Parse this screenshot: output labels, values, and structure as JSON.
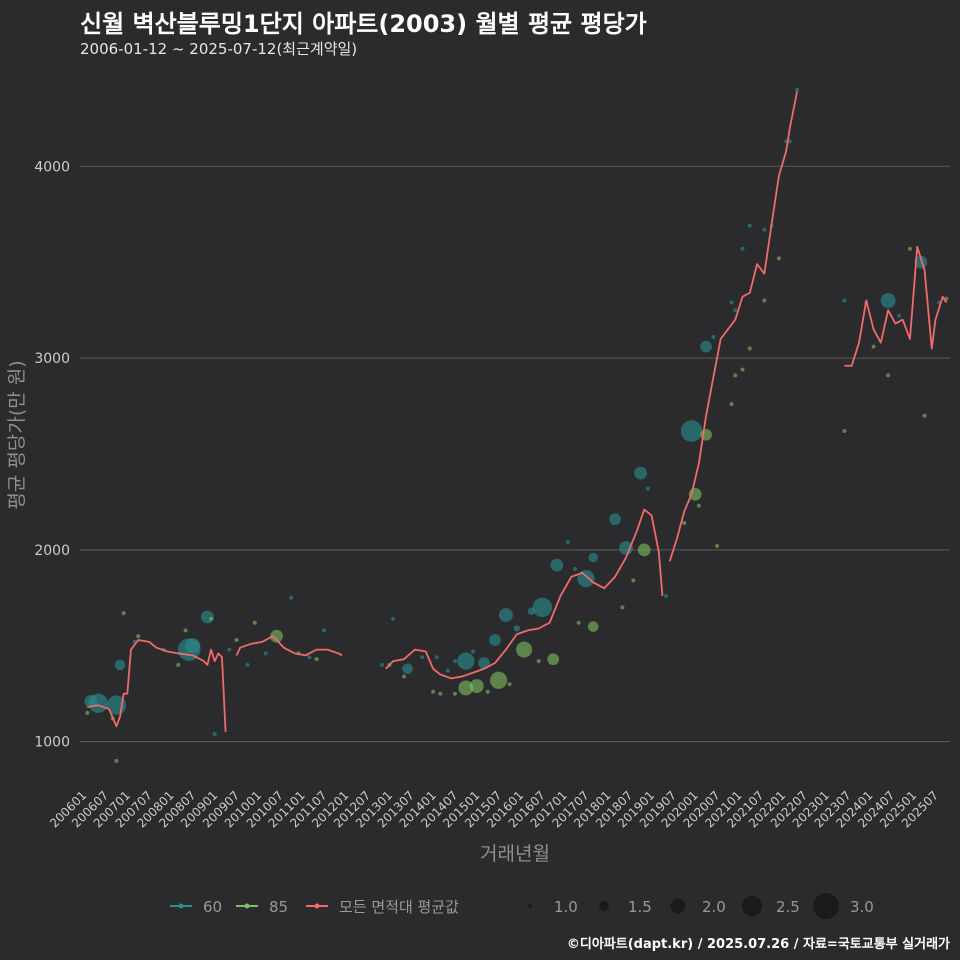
{
  "header": {
    "title": "신월 벽산블루밍1단지 아파트(2003) 월별 평균 평당가",
    "subtitle": "2006-01-12 ~ 2025-07-12(최근계약일)"
  },
  "footer": {
    "credit": "©디아파트(dapt.kr) / 2025.07.26 / 자료=국토교통부 실거래가"
  },
  "colors": {
    "background": "#2b2b2d",
    "grid": "#5a5a5a",
    "series_60": "#2a8f8f",
    "series_85": "#7fbf5f",
    "avg_line": "#ef6b6b"
  },
  "chart_data": {
    "type": "line",
    "title": "신월 벽산블루밍1단지 아파트(2003) 월별 평균 평당가",
    "xlabel": "거래년월",
    "ylabel": "평균 평당가(만 원)",
    "ylim": [
      800,
      4450
    ],
    "yticks": [
      1000,
      2000,
      3000,
      4000
    ],
    "xlim": [
      "2005-11",
      "2025-10"
    ],
    "x_tick_labels": [
      "200601",
      "200607",
      "200701",
      "200707",
      "200801",
      "200807",
      "200901",
      "200907",
      "201001",
      "201007",
      "201101",
      "201107",
      "201201",
      "201207",
      "201301",
      "201307",
      "201401",
      "201407",
      "201501",
      "201507",
      "201601",
      "201607",
      "201701",
      "201707",
      "201801",
      "201807",
      "201901",
      "201907",
      "202001",
      "202007",
      "202101",
      "202107",
      "202201",
      "202207",
      "202301",
      "202307",
      "202401",
      "202407",
      "202501",
      "202507"
    ],
    "legend": {
      "series": [
        {
          "label": "60",
          "color_key": "series_60"
        },
        {
          "label": "85",
          "color_key": "series_85"
        },
        {
          "label": "모든 면적대 평균값",
          "color_key": "avg_line"
        }
      ],
      "size_title": "",
      "sizes": [
        1.0,
        1.5,
        2.0,
        2.5,
        3.0
      ],
      "size_labels": [
        "1.0",
        "1.5",
        "2.0",
        "2.5",
        "3.0"
      ]
    },
    "avg_line_segments": [
      [
        [
          "2006-01",
          1180
        ],
        [
          "2006-04",
          1190
        ],
        [
          "2006-07",
          1170
        ],
        [
          "2006-09",
          1080
        ],
        [
          "2006-10",
          1130
        ],
        [
          "2006-11",
          1250
        ],
        [
          "2006-12",
          1250
        ],
        [
          "2007-01",
          1480
        ],
        [
          "2007-03",
          1530
        ],
        [
          "2007-06",
          1520
        ],
        [
          "2007-08",
          1490
        ],
        [
          "2007-11",
          1470
        ],
        [
          "2008-02",
          1460
        ],
        [
          "2008-06",
          1450
        ],
        [
          "2008-09",
          1420
        ],
        [
          "2008-10",
          1400
        ],
        [
          "2008-11",
          1480
        ],
        [
          "2008-12",
          1420
        ],
        [
          "2009-01",
          1460
        ],
        [
          "2009-02",
          1440
        ],
        [
          "2009-03",
          1050
        ]
      ],
      [
        [
          "2009-06",
          1450
        ],
        [
          "2009-07",
          1490
        ],
        [
          "2009-10",
          1510
        ],
        [
          "2010-01",
          1520
        ],
        [
          "2010-04",
          1550
        ],
        [
          "2010-07",
          1490
        ],
        [
          "2010-10",
          1460
        ],
        [
          "2011-01",
          1450
        ],
        [
          "2011-04",
          1480
        ],
        [
          "2011-07",
          1480
        ],
        [
          "2011-10",
          1460
        ],
        [
          "2011-11",
          1450
        ]
      ],
      [
        [
          "2012-11",
          1380
        ],
        [
          "2013-01",
          1420
        ],
        [
          "2013-04",
          1430
        ],
        [
          "2013-07",
          1480
        ],
        [
          "2013-10",
          1470
        ],
        [
          "2013-12",
          1380
        ],
        [
          "2014-02",
          1350
        ],
        [
          "2014-05",
          1330
        ],
        [
          "2014-08",
          1340
        ],
        [
          "2014-11",
          1360
        ],
        [
          "2015-02",
          1380
        ],
        [
          "2015-05",
          1410
        ],
        [
          "2015-08",
          1480
        ],
        [
          "2015-11",
          1560
        ],
        [
          "2016-02",
          1580
        ],
        [
          "2016-05",
          1590
        ],
        [
          "2016-08",
          1620
        ],
        [
          "2016-11",
          1760
        ],
        [
          "2017-02",
          1860
        ],
        [
          "2017-05",
          1880
        ],
        [
          "2017-08",
          1830
        ],
        [
          "2017-11",
          1800
        ],
        [
          "2018-02",
          1860
        ],
        [
          "2018-05",
          1960
        ],
        [
          "2018-08",
          2100
        ],
        [
          "2018-10",
          2210
        ],
        [
          "2018-12",
          2180
        ],
        [
          "2019-02",
          1990
        ],
        [
          "2019-03",
          1760
        ]
      ],
      [
        [
          "2019-05",
          1940
        ],
        [
          "2019-07",
          2060
        ],
        [
          "2019-09",
          2200
        ],
        [
          "2019-11",
          2290
        ],
        [
          "2020-01",
          2450
        ],
        [
          "2020-03",
          2700
        ],
        [
          "2020-05",
          2900
        ],
        [
          "2020-07",
          3100
        ],
        [
          "2020-09",
          3150
        ],
        [
          "2020-11",
          3200
        ],
        [
          "2021-01",
          3320
        ],
        [
          "2021-03",
          3340
        ],
        [
          "2021-05",
          3490
        ],
        [
          "2021-07",
          3440
        ],
        [
          "2021-09",
          3700
        ],
        [
          "2021-11",
          3950
        ],
        [
          "2022-01",
          4080
        ],
        [
          "2022-02",
          4200
        ],
        [
          "2022-04",
          4390
        ]
      ],
      [
        [
          "2023-05",
          2960
        ],
        [
          "2023-07",
          2960
        ],
        [
          "2023-09",
          3080
        ],
        [
          "2023-11",
          3300
        ],
        [
          "2024-01",
          3150
        ],
        [
          "2024-03",
          3080
        ],
        [
          "2024-05",
          3250
        ],
        [
          "2024-07",
          3180
        ],
        [
          "2024-09",
          3200
        ],
        [
          "2024-11",
          3100
        ],
        [
          "2025-01",
          3580
        ],
        [
          "2025-03",
          3460
        ],
        [
          "2025-05",
          3050
        ],
        [
          "2025-06",
          3200
        ],
        [
          "2025-07",
          3260
        ],
        [
          "2025-08",
          3320
        ],
        [
          "2025-09",
          3290
        ]
      ]
    ],
    "points_60": [
      [
        "2006-02",
        1210,
        1.8
      ],
      [
        "2006-04",
        1200,
        2.4
      ],
      [
        "2006-09",
        1190,
        2.4
      ],
      [
        "2006-10",
        1400,
        1.6
      ],
      [
        "2007-02",
        1520,
        1.0
      ],
      [
        "2007-10",
        1480,
        1.0
      ],
      [
        "2008-05",
        1480,
        2.7
      ],
      [
        "2008-06",
        1500,
        2.0
      ],
      [
        "2008-10",
        1650,
        1.8
      ],
      [
        "2008-12",
        1040,
        1.0
      ],
      [
        "2009-04",
        1480,
        1.0
      ],
      [
        "2009-09",
        1400,
        1.0
      ],
      [
        "2010-02",
        1460,
        1.0
      ],
      [
        "2010-09",
        1750,
        1.0
      ],
      [
        "2011-02",
        1440,
        1.0
      ],
      [
        "2011-06",
        1580,
        1.0
      ],
      [
        "2012-10",
        1400,
        1.0
      ],
      [
        "2013-01",
        1640,
        1.0
      ],
      [
        "2013-05",
        1380,
        1.6
      ],
      [
        "2013-09",
        1440,
        1.0
      ],
      [
        "2014-01",
        1440,
        1.0
      ],
      [
        "2014-04",
        1370,
        1.0
      ],
      [
        "2014-06",
        1420,
        1.0
      ],
      [
        "2014-09",
        1420,
        2.2
      ],
      [
        "2014-11",
        1470,
        1.0
      ],
      [
        "2015-02",
        1410,
        1.7
      ],
      [
        "2015-05",
        1530,
        1.7
      ],
      [
        "2015-08",
        1660,
        1.9
      ],
      [
        "2015-11",
        1590,
        1.2
      ],
      [
        "2016-03",
        1680,
        1.3
      ],
      [
        "2016-06",
        1700,
        2.4
      ],
      [
        "2016-10",
        1920,
        1.8
      ],
      [
        "2017-01",
        2040,
        1.0
      ],
      [
        "2017-03",
        1900,
        1.0
      ],
      [
        "2017-06",
        1850,
        2.2
      ],
      [
        "2017-08",
        1960,
        1.5
      ],
      [
        "2018-02",
        2160,
        1.7
      ],
      [
        "2018-05",
        2010,
        1.9
      ],
      [
        "2018-09",
        2400,
        1.8
      ],
      [
        "2018-11",
        2320,
        1.0
      ],
      [
        "2019-04",
        1760,
        1.0
      ],
      [
        "2019-11",
        2620,
        2.6
      ],
      [
        "2020-03",
        3060,
        1.7
      ],
      [
        "2020-05",
        3110,
        1.0
      ],
      [
        "2020-10",
        3290,
        1.0
      ],
      [
        "2020-11",
        3250,
        1.0
      ],
      [
        "2021-01",
        3570,
        1.0
      ],
      [
        "2021-03",
        3690,
        1.0
      ],
      [
        "2021-07",
        3670,
        1.0
      ],
      [
        "2021-09",
        3690,
        1.0
      ],
      [
        "2022-01",
        4130,
        1.0
      ],
      [
        "2022-02",
        4130,
        1.0
      ],
      [
        "2022-04",
        4400,
        1.0
      ],
      [
        "2023-05",
        3300,
        1.0
      ],
      [
        "2023-11",
        3290,
        1.0
      ],
      [
        "2024-05",
        3300,
        2.0
      ],
      [
        "2024-08",
        3220,
        1.0
      ],
      [
        "2025-02",
        3500,
        1.8
      ],
      [
        "2025-07",
        3290,
        1.0
      ]
    ],
    "points_85": [
      [
        "2006-01",
        1150,
        1.0
      ],
      [
        "2006-08",
        1120,
        1.0
      ],
      [
        "2006-09",
        900,
        1.0
      ],
      [
        "2006-11",
        1670,
        1.0
      ],
      [
        "2007-03",
        1550,
        1.0
      ],
      [
        "2008-02",
        1400,
        1.0
      ],
      [
        "2008-04",
        1580,
        1.0
      ],
      [
        "2008-11",
        1640,
        1.0
      ],
      [
        "2009-06",
        1530,
        1.0
      ],
      [
        "2009-11",
        1620,
        1.0
      ],
      [
        "2010-05",
        1550,
        1.8
      ],
      [
        "2010-11",
        1460,
        1.0
      ],
      [
        "2011-04",
        1430,
        1.0
      ],
      [
        "2012-12",
        1400,
        1.0
      ],
      [
        "2013-04",
        1340,
        1.0
      ],
      [
        "2013-12",
        1260,
        1.0
      ],
      [
        "2014-02",
        1250,
        1.0
      ],
      [
        "2014-06",
        1250,
        1.0
      ],
      [
        "2014-09",
        1280,
        2.0
      ],
      [
        "2014-12",
        1290,
        1.9
      ],
      [
        "2015-03",
        1260,
        1.0
      ],
      [
        "2015-06",
        1320,
        2.2
      ],
      [
        "2015-09",
        1300,
        1.0
      ],
      [
        "2016-01",
        1480,
        2.1
      ],
      [
        "2016-05",
        1420,
        1.0
      ],
      [
        "2016-09",
        1430,
        1.7
      ],
      [
        "2017-04",
        1620,
        1.0
      ],
      [
        "2017-08",
        1600,
        1.6
      ],
      [
        "2018-04",
        1700,
        1.0
      ],
      [
        "2018-07",
        1840,
        1.0
      ],
      [
        "2018-10",
        2000,
        1.8
      ],
      [
        "2019-09",
        2140,
        1.0
      ],
      [
        "2019-12",
        2290,
        1.8
      ],
      [
        "2020-01",
        2230,
        1.0
      ],
      [
        "2020-03",
        2600,
        1.7
      ],
      [
        "2020-06",
        2020,
        1.0
      ],
      [
        "2020-10",
        2760,
        1.0
      ],
      [
        "2020-11",
        2910,
        1.0
      ],
      [
        "2021-01",
        2940,
        1.0
      ],
      [
        "2021-03",
        3050,
        1.0
      ],
      [
        "2021-07",
        3300,
        1.0
      ],
      [
        "2021-11",
        3520,
        1.0
      ],
      [
        "2023-05",
        2620,
        1.0
      ],
      [
        "2024-01",
        3060,
        1.0
      ],
      [
        "2024-05",
        2910,
        1.0
      ],
      [
        "2024-11",
        3570,
        1.0
      ],
      [
        "2025-03",
        2700,
        1.0
      ],
      [
        "2025-09",
        3310,
        1.0
      ]
    ]
  }
}
